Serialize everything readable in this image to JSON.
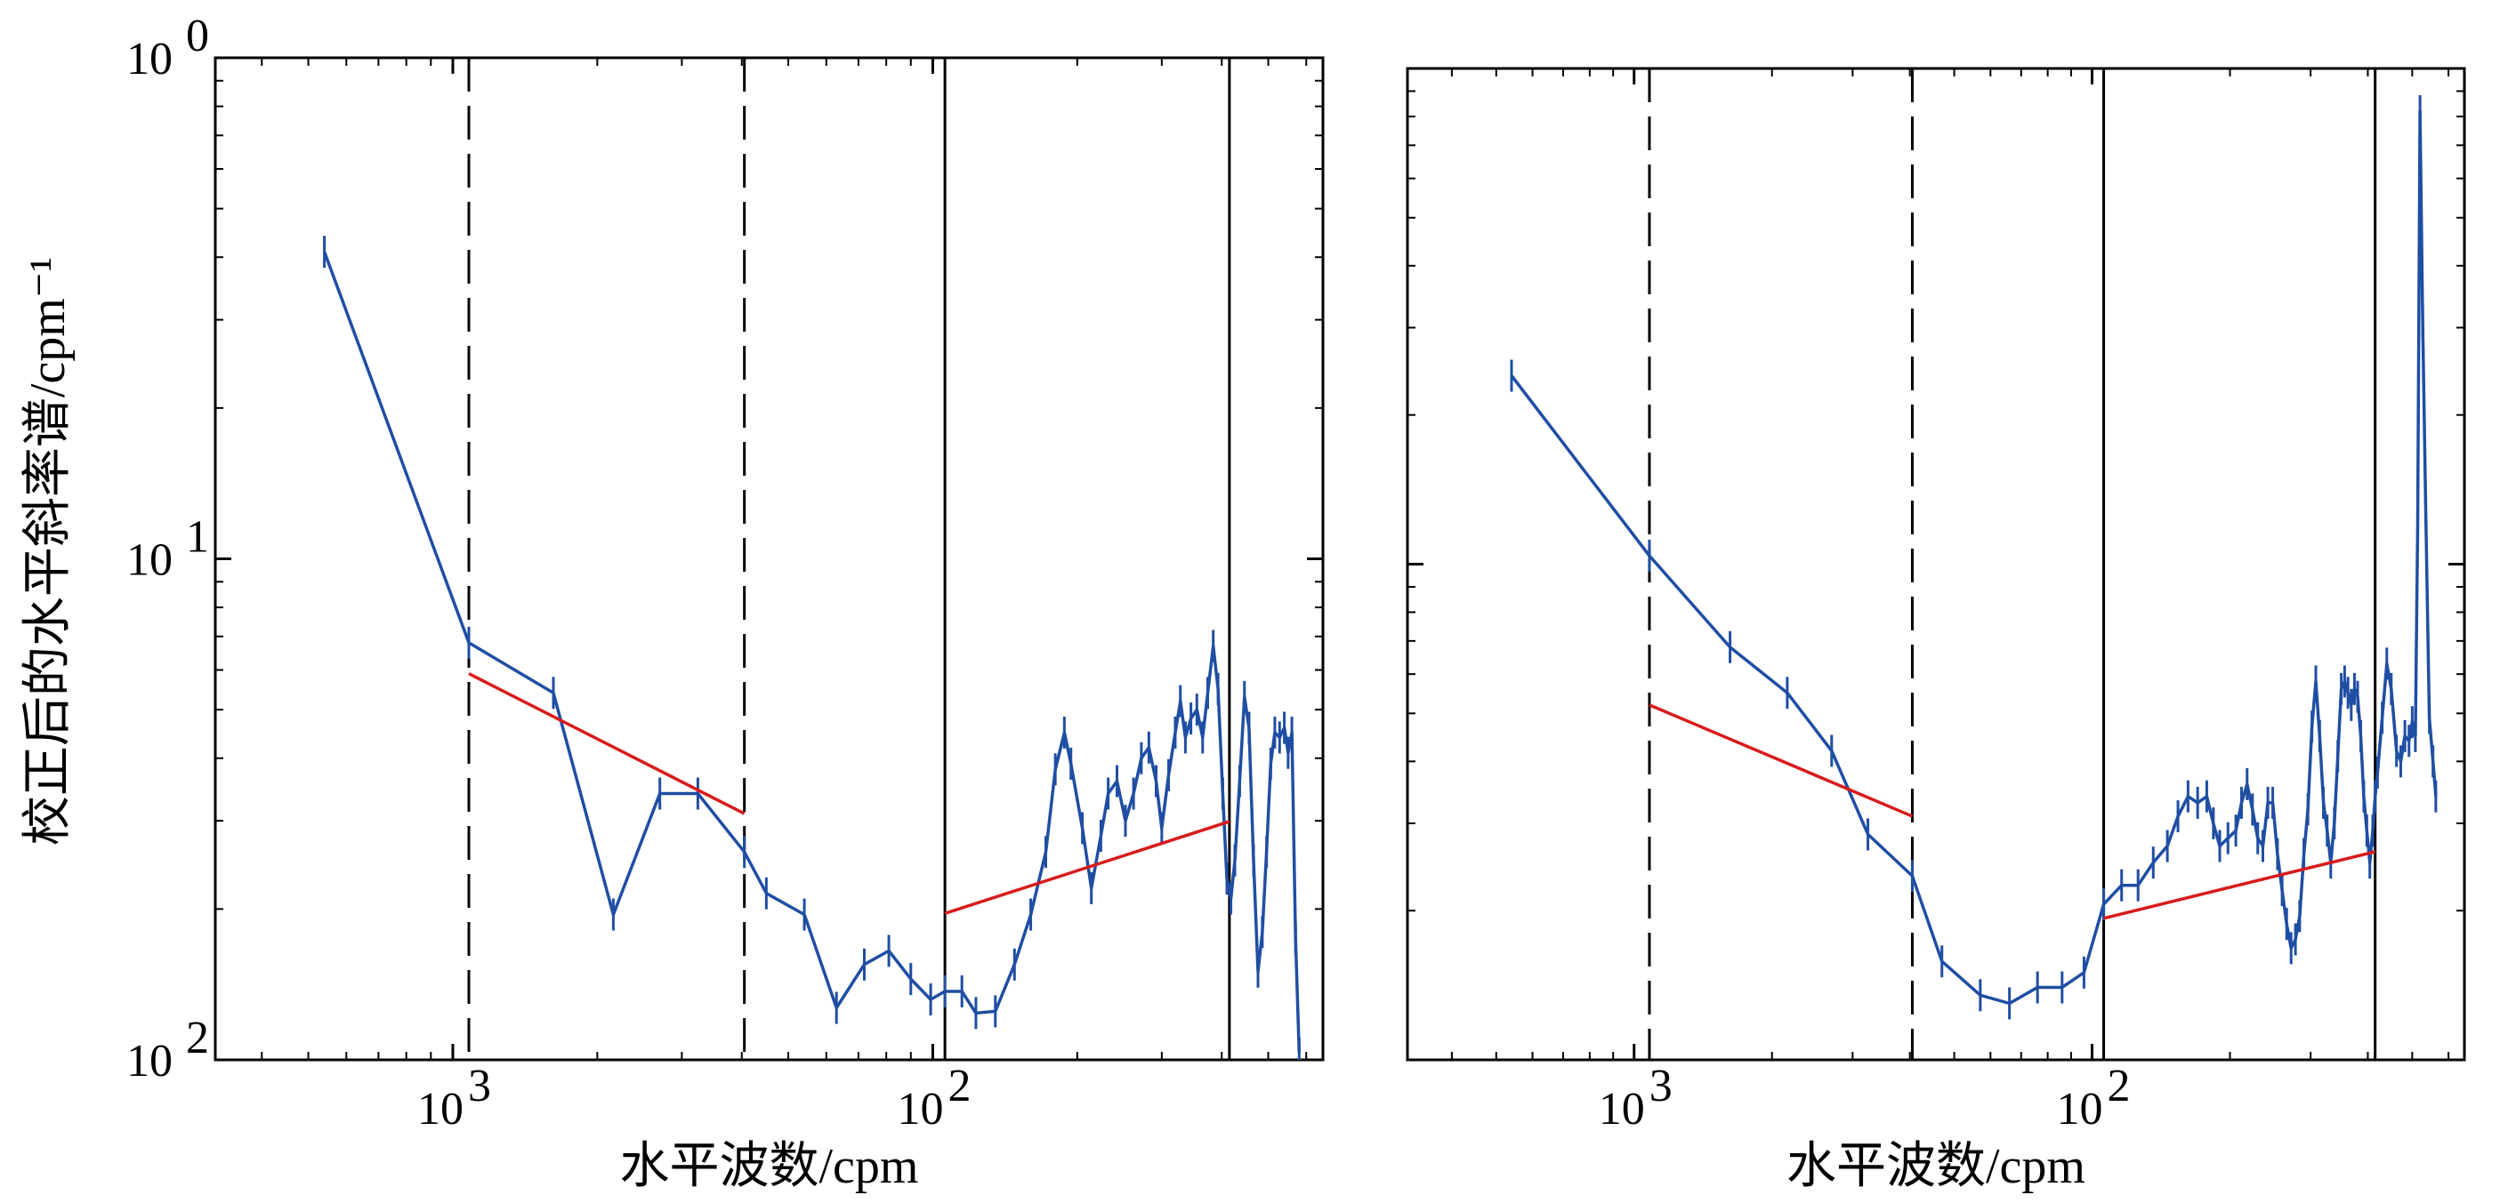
{
  "figure": {
    "ylabel": "校正后的水平斜率谱/cpm⁻¹",
    "colors": {
      "series": "#1f4ea3",
      "fit": "#d81b1b",
      "axis": "#000000"
    }
  },
  "chart_data": [
    {
      "type": "line",
      "panel": "left",
      "xlabel": "水平波数/cpm",
      "ylabel": "校正后的水平斜率谱/cpm⁻¹",
      "xscale": "log",
      "yscale": "log",
      "xticks": [
        {
          "value": 0.001,
          "label": "10",
          "exp": "3"
        },
        {
          "value": 0.01,
          "label": "10",
          "exp": "2"
        }
      ],
      "yticks": [
        {
          "value": 1,
          "label": "10",
          "exp": "0"
        },
        {
          "value": 0.1,
          "label": "10",
          "exp": "1"
        },
        {
          "value": 0.01,
          "label": "10",
          "exp": "2"
        }
      ],
      "xlim": [
        0.00032,
        0.065
      ],
      "ylim": [
        0.01,
        1
      ],
      "grid": false,
      "vlines_dashed": [
        0.00108,
        0.00405
      ],
      "vlines_solid": [
        0.0106,
        0.0415
      ],
      "series": [
        {
          "points": [
            [
              0.00054,
              0.41
            ],
            [
              0.00108,
              0.068
            ],
            [
              0.00162,
              0.054
            ],
            [
              0.00216,
              0.0195
            ],
            [
              0.0027,
              0.034
            ],
            [
              0.00324,
              0.034
            ],
            [
              0.00405,
              0.026
            ],
            [
              0.0045,
              0.0215
            ],
            [
              0.0054,
              0.0195
            ],
            [
              0.0063,
              0.0127
            ],
            [
              0.0072,
              0.0155
            ],
            [
              0.0081,
              0.0165
            ],
            [
              0.009,
              0.0145
            ],
            [
              0.0099,
              0.0132
            ],
            [
              0.0106,
              0.0137
            ],
            [
              0.0115,
              0.0137
            ],
            [
              0.0123,
              0.0124
            ],
            [
              0.0135,
              0.0125
            ],
            [
              0.0148,
              0.0155
            ],
            [
              0.016,
              0.0195
            ],
            [
              0.0172,
              0.026
            ],
            [
              0.018,
              0.038
            ],
            [
              0.0188,
              0.045
            ],
            [
              0.0194,
              0.039
            ],
            [
              0.0205,
              0.029
            ],
            [
              0.0214,
              0.022
            ],
            [
              0.0224,
              0.028
            ],
            [
              0.0232,
              0.034
            ],
            [
              0.0242,
              0.036
            ],
            [
              0.0252,
              0.03
            ],
            [
              0.0262,
              0.034
            ],
            [
              0.0272,
              0.04
            ],
            [
              0.0282,
              0.042
            ],
            [
              0.0292,
              0.036
            ],
            [
              0.03,
              0.029
            ],
            [
              0.031,
              0.037
            ],
            [
              0.032,
              0.045
            ],
            [
              0.0328,
              0.052
            ],
            [
              0.0336,
              0.044
            ],
            [
              0.0345,
              0.048
            ],
            [
              0.0355,
              0.05
            ],
            [
              0.0365,
              0.044
            ],
            [
              0.0374,
              0.054
            ],
            [
              0.0384,
              0.067
            ],
            [
              0.0393,
              0.055
            ],
            [
              0.0402,
              0.034
            ],
            [
              0.041,
              0.023
            ],
            [
              0.0418,
              0.021
            ],
            [
              0.0426,
              0.025
            ],
            [
              0.0436,
              0.036
            ],
            [
              0.0446,
              0.053
            ],
            [
              0.0456,
              0.046
            ],
            [
              0.0466,
              0.025
            ],
            [
              0.0476,
              0.015
            ],
            [
              0.0486,
              0.018
            ],
            [
              0.0496,
              0.026
            ],
            [
              0.0506,
              0.039
            ],
            [
              0.0516,
              0.045
            ],
            [
              0.0528,
              0.044
            ],
            [
              0.054,
              0.046
            ],
            [
              0.055,
              0.041
            ],
            [
              0.056,
              0.045
            ],
            [
              0.057,
              0.0175
            ],
            [
              0.058,
              0.0103
            ]
          ]
        }
      ],
      "fits": [
        {
          "x": [
            0.00108,
            0.00405
          ],
          "y": [
            0.059,
            0.031
          ]
        },
        {
          "x": [
            0.0106,
            0.0415
          ],
          "y": [
            0.0196,
            0.0299
          ]
        }
      ]
    },
    {
      "type": "line",
      "panel": "right",
      "xlabel": "水平波数/cpm",
      "xscale": "log",
      "yscale": "log",
      "xticks": [
        {
          "value": 0.001,
          "label": "10",
          "exp": "3"
        },
        {
          "value": 0.01,
          "label": "10",
          "exp": "2"
        }
      ],
      "xlim": [
        0.00032,
        0.065
      ],
      "ylim": [
        0.01,
        1
      ],
      "grid": false,
      "vlines_dashed": [
        0.00108,
        0.00405
      ],
      "vlines_solid": [
        0.0106,
        0.0415
      ],
      "series": [
        {
          "points": [
            [
              0.00054,
              0.24
            ],
            [
              0.00108,
              0.104
            ],
            [
              0.00162,
              0.068
            ],
            [
              0.00216,
              0.055
            ],
            [
              0.0027,
              0.042
            ],
            [
              0.00324,
              0.0285
            ],
            [
              0.00405,
              0.0235
            ],
            [
              0.0047,
              0.0158
            ],
            [
              0.0057,
              0.0135
            ],
            [
              0.0066,
              0.013
            ],
            [
              0.0076,
              0.014
            ],
            [
              0.0086,
              0.014
            ],
            [
              0.0096,
              0.015
            ],
            [
              0.0106,
              0.0206
            ],
            [
              0.0116,
              0.0225
            ],
            [
              0.0126,
              0.0225
            ],
            [
              0.0136,
              0.025
            ],
            [
              0.0146,
              0.027
            ],
            [
              0.0154,
              0.031
            ],
            [
              0.0162,
              0.034
            ],
            [
              0.017,
              0.033
            ],
            [
              0.0178,
              0.034
            ],
            [
              0.0184,
              0.03
            ],
            [
              0.019,
              0.027
            ],
            [
              0.0198,
              0.028
            ],
            [
              0.0206,
              0.029
            ],
            [
              0.0212,
              0.033
            ],
            [
              0.0218,
              0.036
            ],
            [
              0.0224,
              0.032
            ],
            [
              0.023,
              0.028
            ],
            [
              0.0236,
              0.027
            ],
            [
              0.0242,
              0.033
            ],
            [
              0.0248,
              0.033
            ],
            [
              0.0254,
              0.026
            ],
            [
              0.026,
              0.022
            ],
            [
              0.0266,
              0.0188
            ],
            [
              0.0272,
              0.0168
            ],
            [
              0.0278,
              0.0175
            ],
            [
              0.0284,
              0.0195
            ],
            [
              0.029,
              0.026
            ],
            [
              0.0296,
              0.032
            ],
            [
              0.0302,
              0.047
            ],
            [
              0.0308,
              0.058
            ],
            [
              0.0314,
              0.045
            ],
            [
              0.032,
              0.033
            ],
            [
              0.0326,
              0.029
            ],
            [
              0.0332,
              0.025
            ],
            [
              0.0338,
              0.03
            ],
            [
              0.0344,
              0.041
            ],
            [
              0.035,
              0.056
            ],
            [
              0.0356,
              0.058
            ],
            [
              0.0362,
              0.055
            ],
            [
              0.0368,
              0.052
            ],
            [
              0.0374,
              0.056
            ],
            [
              0.038,
              0.054
            ],
            [
              0.0386,
              0.045
            ],
            [
              0.0392,
              0.034
            ],
            [
              0.0398,
              0.029
            ],
            [
              0.0404,
              0.025
            ],
            [
              0.041,
              0.029
            ],
            [
              0.0415,
              0.034
            ],
            [
              0.042,
              0.038
            ],
            [
              0.043,
              0.049
            ],
            [
              0.044,
              0.063
            ],
            [
              0.045,
              0.056
            ],
            [
              0.0462,
              0.042
            ],
            [
              0.0472,
              0.04
            ],
            [
              0.0482,
              0.045
            ],
            [
              0.0492,
              0.044
            ],
            [
              0.05,
              0.048
            ],
            [
              0.0508,
              0.045
            ],
            [
              0.0514,
              0.12
            ],
            [
              0.052,
              0.82
            ],
            [
              0.0527,
              0.31
            ],
            [
              0.0535,
              0.13
            ],
            [
              0.0545,
              0.049
            ],
            [
              0.0555,
              0.04
            ],
            [
              0.0563,
              0.034
            ]
          ]
        }
      ],
      "fits": [
        {
          "x": [
            0.00108,
            0.00405
          ],
          "y": [
            0.052,
            0.031
          ]
        },
        {
          "x": [
            0.0106,
            0.0415
          ],
          "y": [
            0.0193,
            0.0263
          ]
        }
      ]
    }
  ]
}
